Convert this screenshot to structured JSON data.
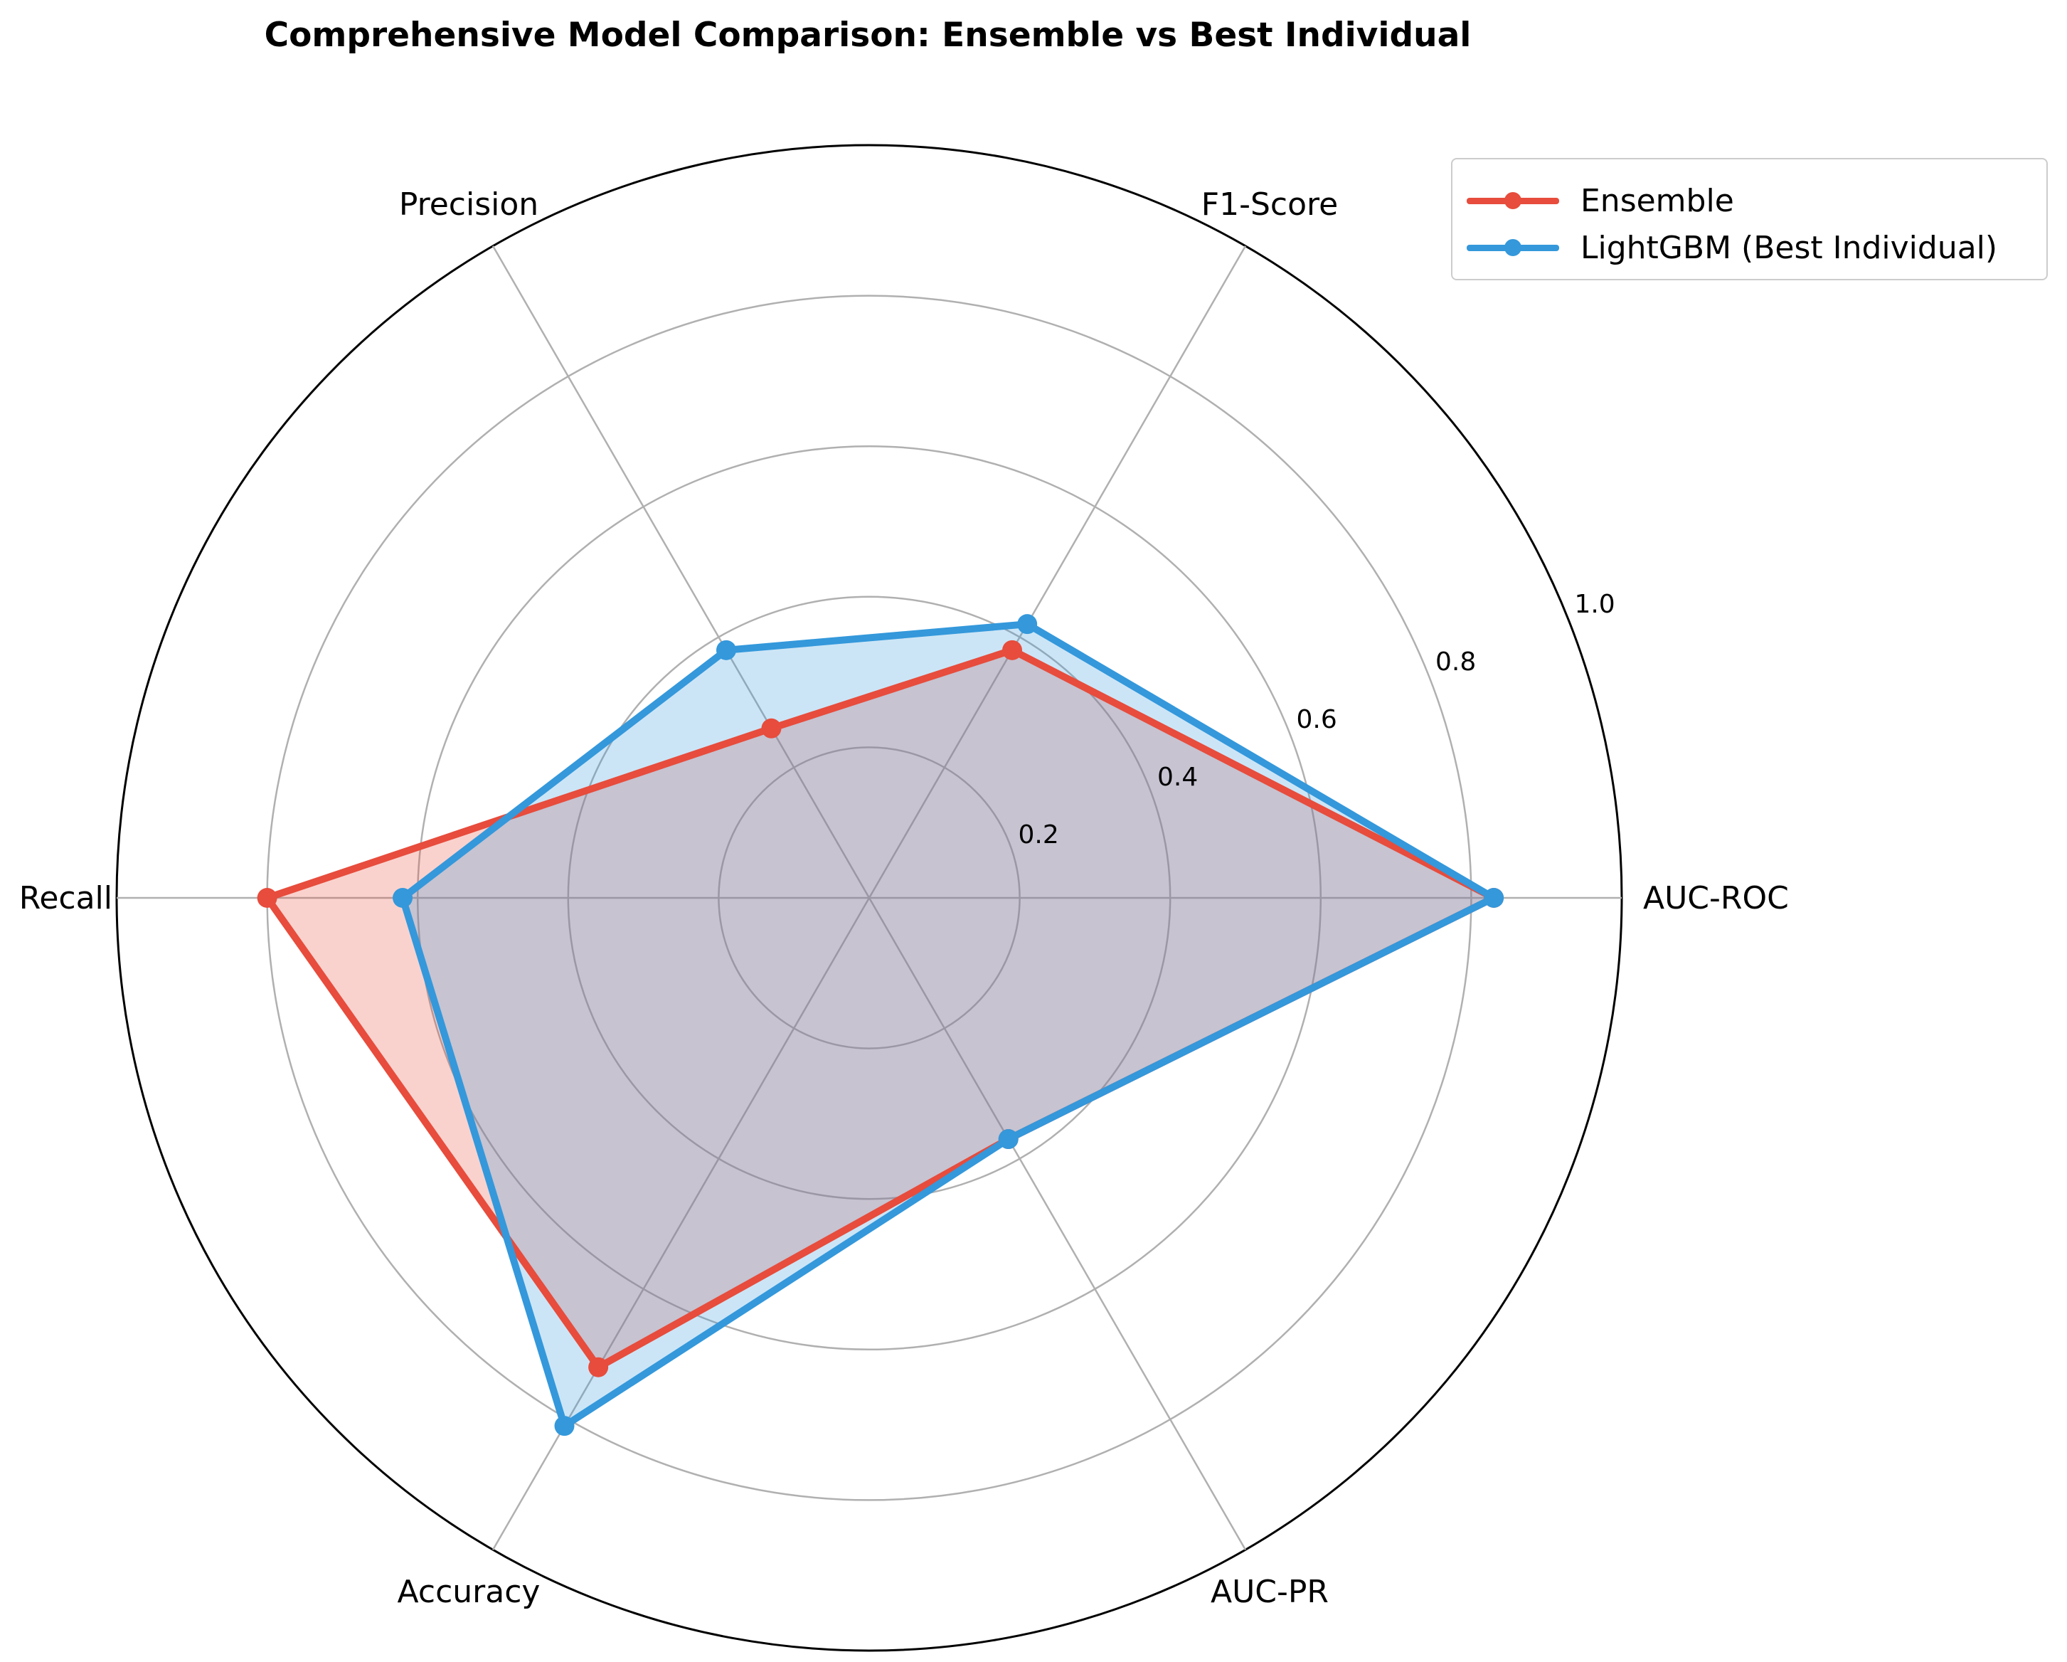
{
  "title": "Comprehensive Model Comparison: Ensemble vs Best Individual",
  "legend": {
    "items": [
      {
        "label": "Ensemble",
        "color": "#e74c3c"
      },
      {
        "label": "LightGBM (Best Individual)",
        "color": "#3498db"
      }
    ],
    "placement": "upper-right"
  },
  "chart_data": {
    "type": "radar",
    "title": "Comprehensive Model Comparison: Ensemble vs Best Individual",
    "categories": [
      "AUC-ROC",
      "F1-Score",
      "Precision",
      "Recall",
      "Accuracy",
      "AUC-PR"
    ],
    "radial_ticks": [
      "0.2",
      "0.4",
      "0.6",
      "0.8",
      "1.0"
    ],
    "rlim": [
      0,
      1.0
    ],
    "grid": true,
    "series": [
      {
        "name": "Ensemble",
        "color": "#e74c3c",
        "fill_opacity": 0.25,
        "values": [
          0.83,
          0.38,
          0.26,
          0.8,
          0.72,
          0.37
        ]
      },
      {
        "name": "LightGBM (Best Individual)",
        "color": "#3498db",
        "fill_opacity": 0.25,
        "values": [
          0.83,
          0.42,
          0.38,
          0.62,
          0.81,
          0.37
        ]
      }
    ]
  }
}
